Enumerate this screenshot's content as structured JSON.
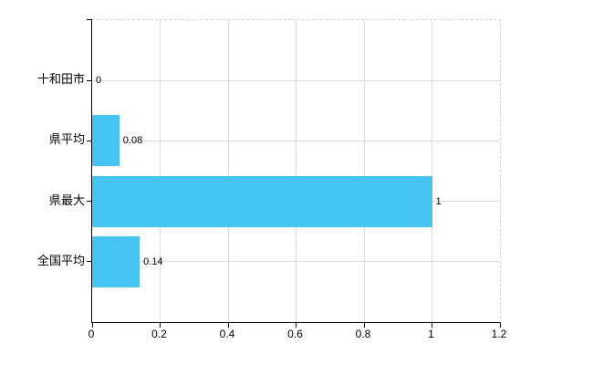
{
  "chart_data": {
    "type": "bar",
    "orientation": "horizontal",
    "title": "",
    "xlabel": "",
    "ylabel": "",
    "categories": [
      "十和田市",
      "県平均",
      "県最大",
      "全国平均"
    ],
    "values": [
      0,
      0.08,
      1,
      0.14
    ],
    "value_labels": [
      "0",
      "0.08",
      "1",
      "0.14"
    ],
    "xlim": [
      0,
      1.2
    ],
    "x_ticks": [
      0,
      0.2,
      0.4,
      0.6,
      0.8,
      1,
      1.2
    ],
    "x_tick_labels": [
      "0",
      "0.2",
      "0.4",
      "0.6",
      "0.8",
      "1",
      "1.2"
    ],
    "grid": true,
    "legend": false,
    "colors": {
      "bar": "#45C3F1",
      "grid": "#dcdcdc",
      "axis": "#000000",
      "border_dashed": "#d4d4d4",
      "text": "#000000",
      "background": "#ffffff"
    }
  }
}
